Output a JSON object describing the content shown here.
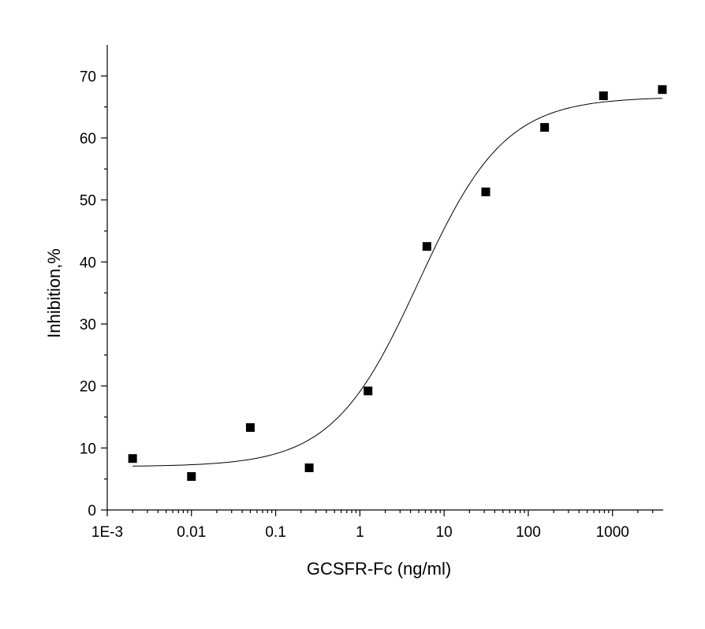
{
  "chart_data": {
    "type": "scatter",
    "xlabel": "GCSFR-Fc (ng/ml)",
    "ylabel": "Inhibition,%",
    "x_scale": "log",
    "xlim": [
      0.001,
      4000
    ],
    "ylim": [
      0,
      75
    ],
    "x_ticks": [
      {
        "value": 0.001,
        "label": "1E-3"
      },
      {
        "value": 0.01,
        "label": "0.01"
      },
      {
        "value": 0.1,
        "label": "0.1"
      },
      {
        "value": 1,
        "label": "1"
      },
      {
        "value": 10,
        "label": "10"
      },
      {
        "value": 100,
        "label": "100"
      },
      {
        "value": 1000,
        "label": "1000"
      }
    ],
    "y_ticks": [
      {
        "value": 0,
        "label": "0"
      },
      {
        "value": 10,
        "label": "10"
      },
      {
        "value": 20,
        "label": "20"
      },
      {
        "value": 30,
        "label": "30"
      },
      {
        "value": 40,
        "label": "40"
      },
      {
        "value": 50,
        "label": "50"
      },
      {
        "value": 60,
        "label": "60"
      },
      {
        "value": 70,
        "label": "70"
      }
    ],
    "grid": false,
    "series": [
      {
        "marker": "square",
        "color": "#000000",
        "points": [
          {
            "x": 0.002,
            "y": 8.3
          },
          {
            "x": 0.01,
            "y": 5.4
          },
          {
            "x": 0.05,
            "y": 13.3
          },
          {
            "x": 0.25,
            "y": 6.8
          },
          {
            "x": 1.25,
            "y": 19.2
          },
          {
            "x": 6.25,
            "y": 42.5
          },
          {
            "x": 31.25,
            "y": 51.3
          },
          {
            "x": 156.25,
            "y": 61.7
          },
          {
            "x": 781.25,
            "y": 66.8
          },
          {
            "x": 3906.25,
            "y": 67.8
          }
        ]
      }
    ],
    "fit_curve": {
      "model": "4PL",
      "bottom": 7.0,
      "top": 66.6,
      "ec50": 5.0,
      "hill": 0.85,
      "x_range": [
        0.002,
        3906.25
      ]
    }
  }
}
